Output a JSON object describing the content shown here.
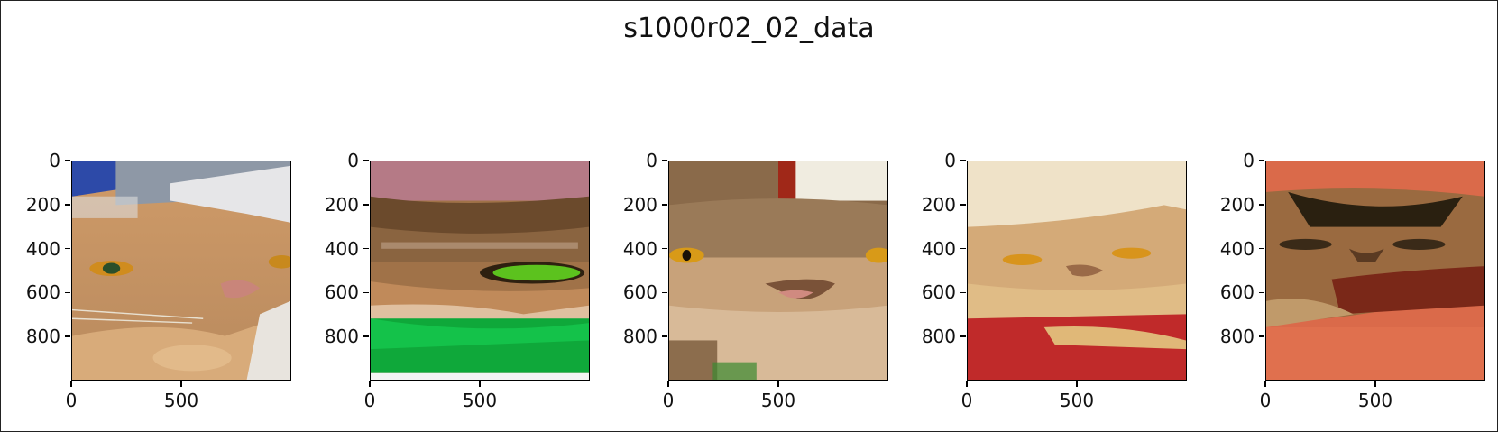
{
  "figure": {
    "title": "s1000r02_02_data"
  },
  "axes_common": {
    "y_tick_labels": [
      "0",
      "200",
      "400",
      "600",
      "800"
    ],
    "y_tick_values": [
      0,
      200,
      400,
      600,
      800
    ],
    "x_tick_labels": [
      "0",
      "500"
    ],
    "x_tick_values": [
      0,
      500
    ],
    "x_range": [
      0,
      1000
    ],
    "y_range": [
      0,
      1000
    ],
    "y_inverted": true
  },
  "panels": [
    {
      "description_icon": "cat-face-photo",
      "background": "#c89a6a"
    },
    {
      "description_icon": "cat-eye-closeup-photo",
      "background": "#9a7048"
    },
    {
      "description_icon": "tabby-cat-face-photo",
      "background": "#c8a27a"
    },
    {
      "description_icon": "cat-on-red-blanket-photo",
      "background": "#d7b38a"
    },
    {
      "description_icon": "cat-on-red-background-photo",
      "background": "#d9694a"
    }
  ]
}
